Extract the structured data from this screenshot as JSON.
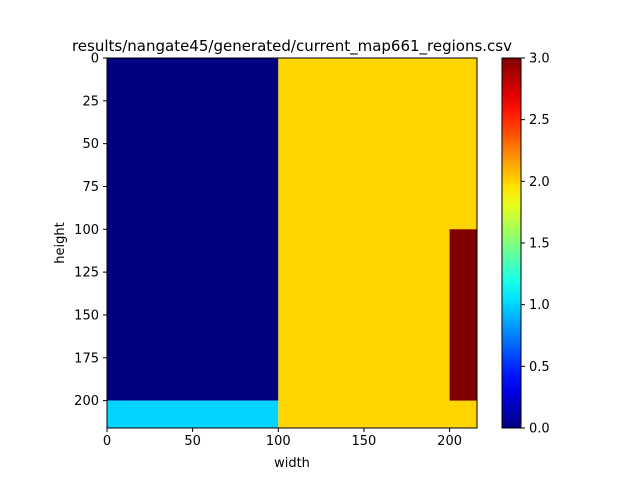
{
  "chart_data": {
    "type": "heatmap",
    "title": "results/nangate45/generated/current_map661_regions.csv",
    "xlabel": "width",
    "ylabel": "height",
    "xlim": [
      0,
      216
    ],
    "ylim": [
      216,
      0
    ],
    "xticks": [
      0,
      50,
      100,
      150,
      200
    ],
    "yticks": [
      0,
      25,
      50,
      75,
      100,
      125,
      150,
      175,
      200
    ],
    "colormap": "jet",
    "clim": [
      0,
      3
    ],
    "colorbar_ticks": [
      "0.0",
      "0.5",
      "1.0",
      "1.5",
      "2.0",
      "2.5",
      "3.0"
    ],
    "regions": [
      {
        "x0": 0,
        "x1": 100,
        "y0": 0,
        "y1": 200,
        "value": 0
      },
      {
        "x0": 0,
        "x1": 100,
        "y0": 200,
        "y1": 216,
        "value": 1
      },
      {
        "x0": 100,
        "x1": 216,
        "y0": 0,
        "y1": 216,
        "value": 2
      },
      {
        "x0": 200,
        "x1": 216,
        "y0": 100,
        "y1": 200,
        "value": 3
      }
    ]
  }
}
